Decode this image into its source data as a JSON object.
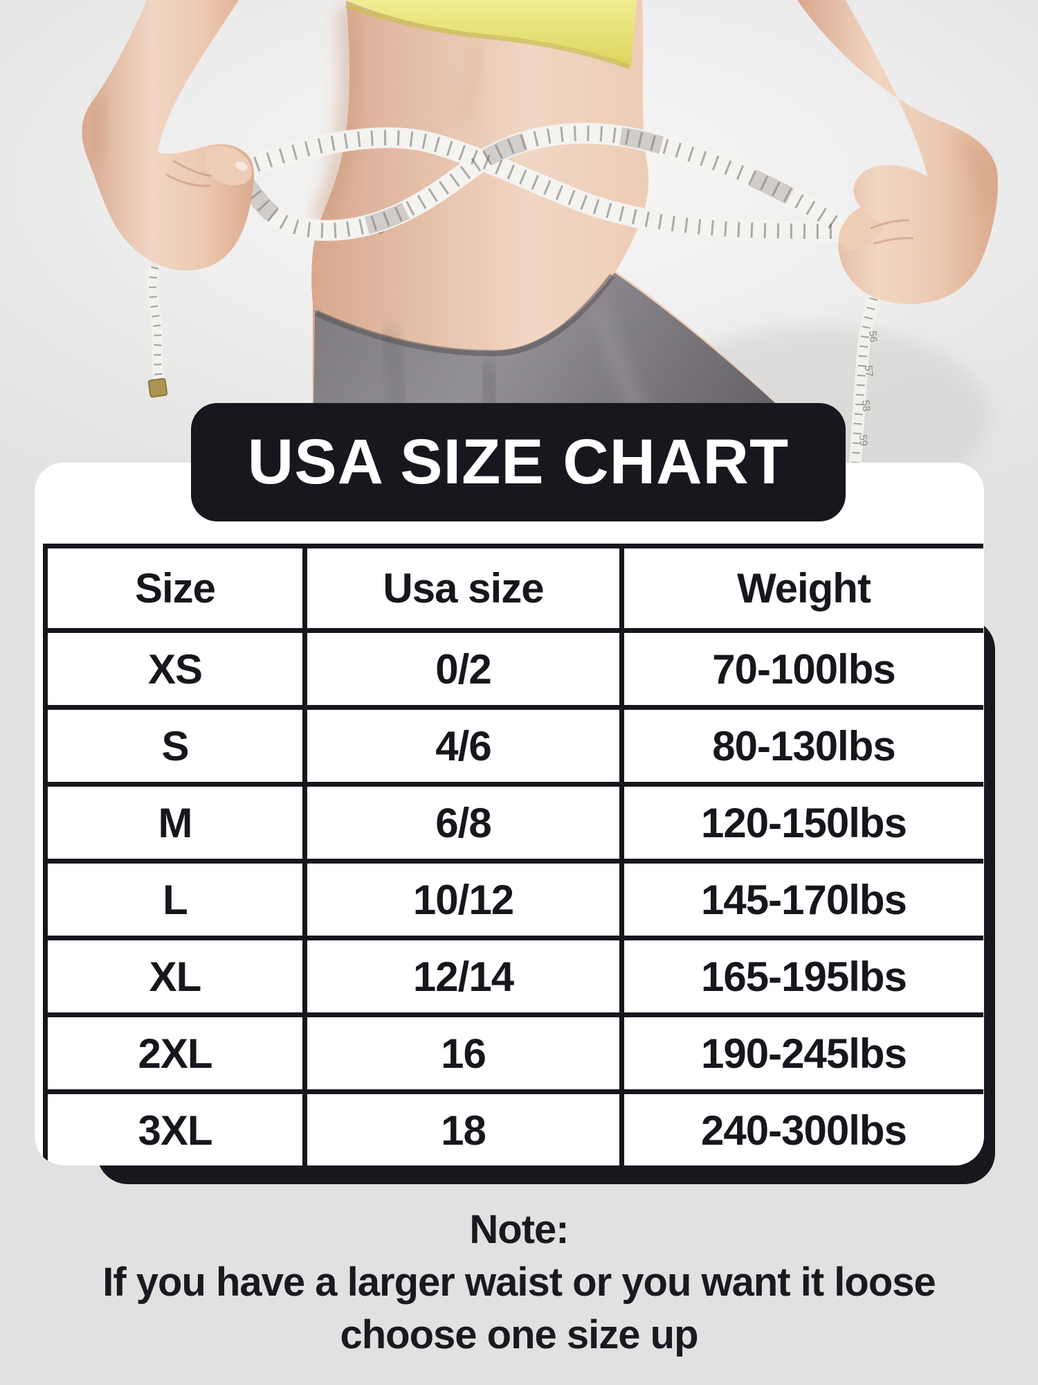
{
  "title": "USA SIZE CHART",
  "table": {
    "columns": [
      "Size",
      "Usa size",
      "Weight"
    ],
    "rows": [
      [
        "XS",
        "0/2",
        "70-100lbs"
      ],
      [
        "S",
        "4/6",
        "80-130lbs"
      ],
      [
        "M",
        "6/8",
        "120-150lbs"
      ],
      [
        "L",
        "10/12",
        "145-170lbs"
      ],
      [
        "XL",
        "12/14",
        "165-195lbs"
      ],
      [
        "2XL",
        "16",
        "190-245lbs"
      ],
      [
        "3XL",
        "18",
        "240-300lbs"
      ]
    ]
  },
  "note": {
    "heading": "Note:",
    "line1": "If you have a larger waist or you want it loose",
    "line2": "choose one size up"
  },
  "photo": {
    "description": "Woman in yellow sports top and gray leggings measuring her waist with a tape measure",
    "tape_marks": [
      "56",
      "57",
      "58",
      "59"
    ]
  },
  "colors": {
    "dark": "#18171e",
    "card": "#ffffff",
    "page_bg": "#e2e1e1",
    "grid_line": "#17161c",
    "text": "#17161c",
    "tape": "#f2f1ec",
    "skin": "#ecc9b1",
    "leggings": "#757277",
    "top_yellow": "#e9e473"
  },
  "chart_data": {
    "type": "table",
    "title": "USA SIZE CHART",
    "columns": [
      "Size",
      "Usa size",
      "Weight"
    ],
    "rows": [
      [
        "XS",
        "0/2",
        "70-100lbs"
      ],
      [
        "S",
        "4/6",
        "80-130lbs"
      ],
      [
        "M",
        "6/8",
        "120-150lbs"
      ],
      [
        "L",
        "10/12",
        "145-170lbs"
      ],
      [
        "XL",
        "12/14",
        "165-195lbs"
      ],
      [
        "2XL",
        "16",
        "190-245lbs"
      ],
      [
        "3XL",
        "18",
        "240-300lbs"
      ]
    ],
    "notes": [
      "Note:",
      "If you have a larger waist or you want it loose",
      "choose one size up"
    ]
  }
}
